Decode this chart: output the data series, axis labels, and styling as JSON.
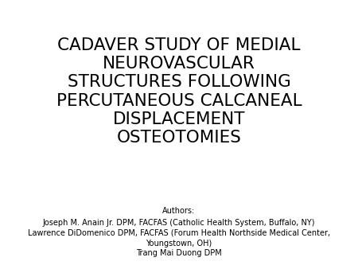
{
  "title_lines": [
    "CADAVER STUDY OF MEDIAL",
    "NEUROVASCULAR",
    "STRUCTURES FOLLOWING",
    "PERCUTANEOUS CALCANEAL",
    "DISPLACEMENT",
    "OSTEOTOMIES"
  ],
  "authors_label": "Authors:",
  "author_lines": [
    "Joseph M. Anain Jr. DPM, FACFAS (Catholic Health System, Buffalo, NY)",
    "Lawrence DiDomenico DPM, FACFAS (Forum Health Northside Medical Center,",
    "Youngstown, OH)",
    "Trang Mai Duong DPM"
  ],
  "background_color": "#ffffff",
  "title_fontsize": 15.5,
  "title_color": "#000000",
  "authors_label_fontsize": 7,
  "author_fontsize": 7,
  "author_color": "#000000"
}
